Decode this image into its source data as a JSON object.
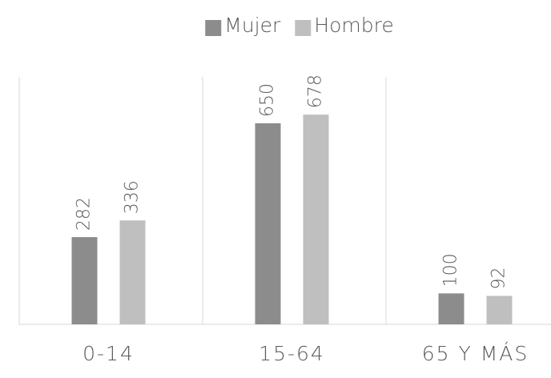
{
  "chart_data": {
    "type": "bar",
    "categories": [
      "0-14",
      "15-64",
      "65 Y MÁS"
    ],
    "series": [
      {
        "name": "Mujer",
        "color": "#8c8c8c",
        "values": [
          282,
          650,
          100
        ]
      },
      {
        "name": "Hombre",
        "color": "#bfbfbf",
        "values": [
          336,
          678,
          92
        ]
      }
    ],
    "ylim": [
      0,
      800
    ],
    "legend": "top"
  }
}
